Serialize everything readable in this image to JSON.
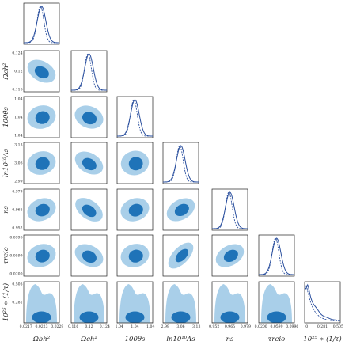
{
  "chart_data": {
    "type": "triangle",
    "description_note": "",
    "colors": {
      "outer_contour": "#a9cfe9",
      "inner_contour": "#1f73b8",
      "marginal_line": "#2a4f9e",
      "frame": "#222222"
    },
    "params": [
      {
        "key": "omega_b",
        "label": "Ωbh²",
        "ticks": [
          "0.0217",
          "0.0223",
          "0.0229"
        ],
        "mean": 0.0223
      },
      {
        "key": "omega_c",
        "label": "Ωch²",
        "ticks": [
          "0.116",
          "0.12",
          "0.124"
        ],
        "mean": 0.12
      },
      {
        "key": "theta",
        "label": "100θs",
        "ticks": [
          "1.04",
          "1.04",
          "1.04"
        ],
        "mean": 1.04
      },
      {
        "key": "logA",
        "label": "ln10¹⁰As",
        "ticks": [
          "2.99",
          "3.06",
          "3.13"
        ],
        "mean": 3.06
      },
      {
        "key": "ns",
        "label": "ns",
        "ticks": [
          "0.952",
          "0.965",
          "0.979"
        ],
        "mean": 0.965
      },
      {
        "key": "tau",
        "label": "τreio",
        "ticks": [
          "0.0200",
          "0.0599",
          "0.0996"
        ],
        "mean": 0.0599
      },
      {
        "key": "invtau",
        "label": "10²⁵ ∗ (1/τ)",
        "ticks": [
          "0",
          "0.281",
          "0.505"
        ],
        "mean": 0.09
      }
    ],
    "y_labels": [
      {
        "row": 1,
        "text": "Ωch²"
      },
      {
        "row": 2,
        "text": "100θs"
      },
      {
        "row": 3,
        "text": "ln10¹⁰As"
      },
      {
        "row": 4,
        "text": "ns"
      },
      {
        "row": 5,
        "text": "τreio"
      },
      {
        "row": 6,
        "text": "10²⁵ ∗ (1/τ)"
      }
    ],
    "y_ticks": [
      {
        "row": 1,
        "ticks": [
          "0.124",
          "0.12",
          "0.116"
        ]
      },
      {
        "row": 2,
        "ticks": [
          "1.04",
          "1.04",
          "1.04"
        ]
      },
      {
        "row": 3,
        "ticks": [
          "3.13",
          "3.06",
          "2.99"
        ]
      },
      {
        "row": 4,
        "ticks": [
          "0.979",
          "0.965",
          "0.952"
        ]
      },
      {
        "row": 5,
        "ticks": [
          "0.0996",
          "0.0599",
          "0.0200"
        ]
      },
      {
        "row": 6,
        "ticks": [
          "0.505",
          "0.281",
          ""
        ]
      }
    ],
    "correlations": [
      [
        0,
        0,
        0,
        0,
        0,
        0,
        0
      ],
      [
        -0.55,
        0,
        0,
        0,
        0,
        0,
        0
      ],
      [
        0.3,
        -0.4,
        0,
        0,
        0,
        0,
        0
      ],
      [
        0.3,
        -0.55,
        0.2,
        0,
        0,
        0,
        0
      ],
      [
        0.4,
        -0.65,
        0.35,
        0.55,
        0,
        0,
        0
      ],
      [
        0.35,
        -0.5,
        0.3,
        0.85,
        0.55,
        0,
        0
      ],
      [
        0,
        0,
        0,
        0,
        0,
        0,
        0
      ]
    ]
  }
}
